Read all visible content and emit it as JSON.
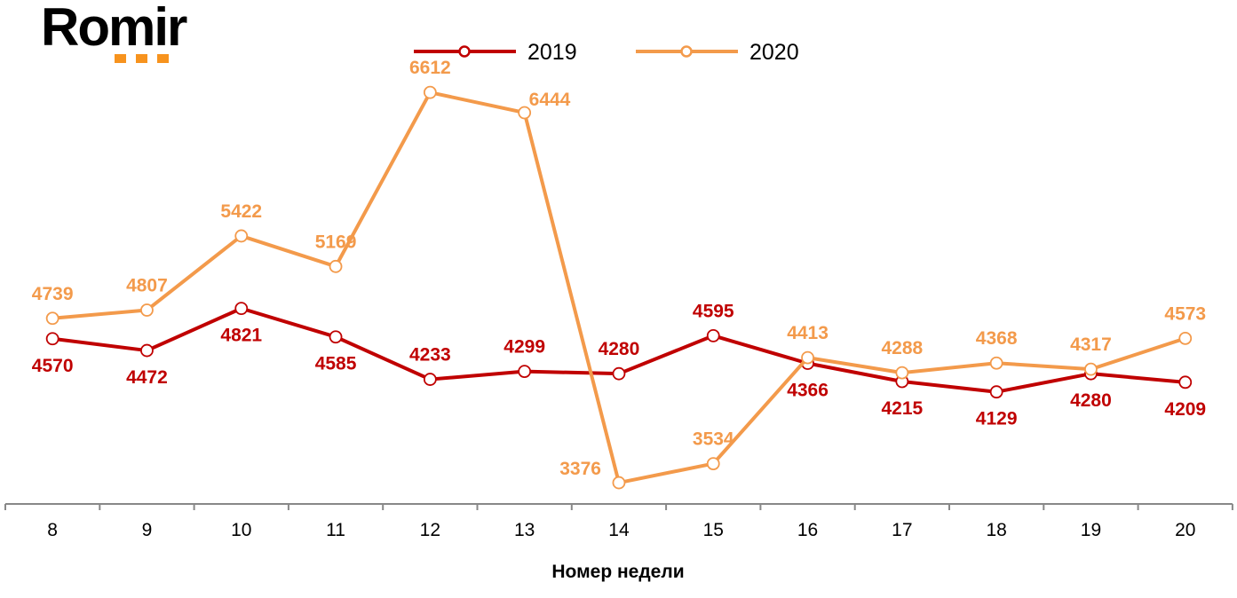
{
  "logo": {
    "text": "Romir"
  },
  "chart_data": {
    "type": "line",
    "title": "",
    "xlabel": "Номер недели",
    "ylabel": "",
    "categories": [
      "8",
      "9",
      "10",
      "11",
      "12",
      "13",
      "14",
      "15",
      "16",
      "17",
      "18",
      "19",
      "20"
    ],
    "series": [
      {
        "name": "2019",
        "color": "#C00000",
        "values": [
          4570,
          4472,
          4821,
          4585,
          4233,
          4299,
          4280,
          4595,
          4366,
          4215,
          4129,
          4280,
          4209
        ]
      },
      {
        "name": "2020",
        "color": "#F39A4B",
        "values": [
          4739,
          4807,
          5422,
          5169,
          6612,
          6444,
          3376,
          3534,
          4413,
          4288,
          4368,
          4317,
          4573
        ]
      }
    ],
    "ylim": [
      3200,
      6900
    ],
    "grid": false,
    "legend": "top",
    "data_labels": true
  }
}
